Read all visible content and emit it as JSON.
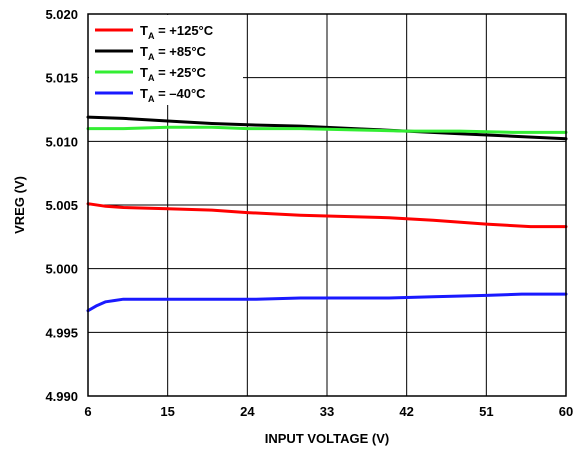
{
  "chart_data": {
    "type": "line",
    "title": "",
    "xlabel": "INPUT VOLTAGE (V)",
    "ylabel": "VREG (V)",
    "xlim": [
      6,
      60
    ],
    "ylim": [
      4.99,
      5.02
    ],
    "xticks": [
      6,
      15,
      24,
      33,
      42,
      51,
      60
    ],
    "xtick_labels": [
      "6",
      "15",
      "24",
      "33",
      "42",
      "51",
      "60"
    ],
    "yticks": [
      4.99,
      4.995,
      5.0,
      5.005,
      5.01,
      5.015,
      5.02
    ],
    "ytick_labels": [
      "4.990",
      "4.995",
      "5.000",
      "5.005",
      "5.010",
      "5.015",
      "5.020"
    ],
    "grid": true,
    "legend_position": "top-left",
    "series": [
      {
        "name": "T",
        "name_sub": "A",
        "name_rest": " = +125°C",
        "color": "#ff0000",
        "x": [
          6,
          8,
          10,
          15,
          20,
          24,
          30,
          35,
          40,
          45,
          51,
          56,
          60
        ],
        "y": [
          5.0051,
          5.0049,
          5.0048,
          5.0047,
          5.0046,
          5.0044,
          5.0042,
          5.0041,
          5.004,
          5.0038,
          5.0035,
          5.0033,
          5.0033
        ]
      },
      {
        "name": "T",
        "name_sub": "A",
        "name_rest": " = +85°C",
        "color": "#000000",
        "x": [
          6,
          10,
          15,
          20,
          24,
          30,
          36,
          42,
          48,
          54,
          60
        ],
        "y": [
          5.0119,
          5.0118,
          5.0116,
          5.0114,
          5.0113,
          5.0112,
          5.011,
          5.0108,
          5.0106,
          5.0104,
          5.0102
        ]
      },
      {
        "name": "T",
        "name_sub": "A",
        "name_rest": " = +25°C",
        "color": "#33ee33",
        "x": [
          6,
          10,
          15,
          20,
          24,
          30,
          36,
          42,
          48,
          54,
          60
        ],
        "y": [
          5.011,
          5.011,
          5.0111,
          5.0111,
          5.011,
          5.011,
          5.0109,
          5.0108,
          5.0108,
          5.0107,
          5.0107
        ]
      },
      {
        "name": "T",
        "name_sub": "A",
        "name_rest": " = –40°C",
        "color": "#1a1aff",
        "x": [
          6,
          7,
          8,
          9,
          10,
          12,
          15,
          20,
          25,
          30,
          35,
          40,
          45,
          51,
          55,
          60
        ],
        "y": [
          4.9967,
          4.9971,
          4.9974,
          4.9975,
          4.9976,
          4.9976,
          4.9976,
          4.9976,
          4.9976,
          4.9977,
          4.9977,
          4.9977,
          4.9978,
          4.9979,
          4.998,
          4.998
        ]
      }
    ]
  }
}
